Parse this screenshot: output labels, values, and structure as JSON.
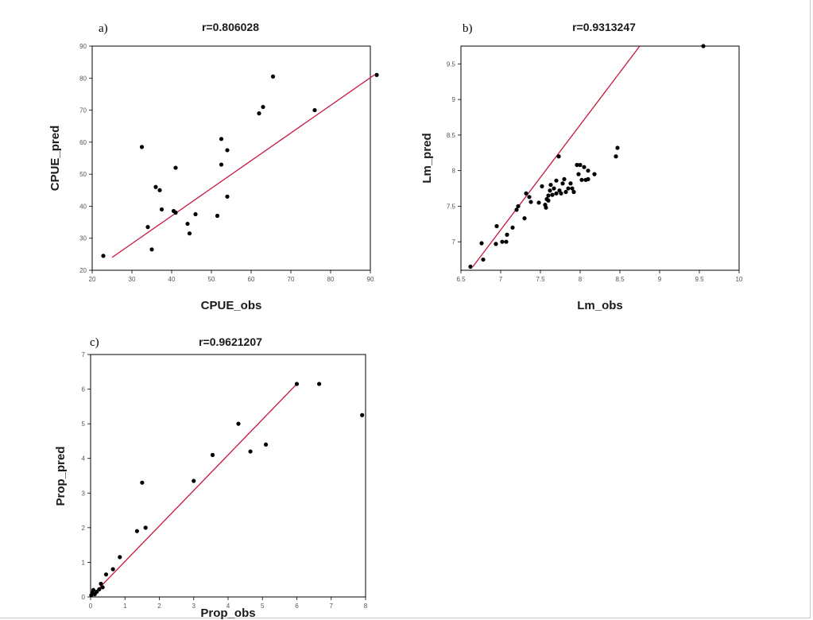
{
  "figure": {
    "panels": [
      {
        "label": "a)"
      },
      {
        "label": "b)"
      },
      {
        "label": "c)"
      }
    ]
  },
  "chart_data": [
    {
      "type": "scatter",
      "title": "r=0.806028",
      "xlabel": "CPUE_obs",
      "ylabel": "CPUE_pred",
      "xlim": [
        20,
        90
      ],
      "ylim": [
        20,
        90
      ],
      "xticks": [
        20,
        30,
        40,
        50,
        60,
        70,
        80,
        90
      ],
      "yticks": [
        20,
        30,
        40,
        50,
        60,
        70,
        80,
        90
      ],
      "tick_labels_x": [
        "20",
        "30",
        "40",
        "50",
        "60",
        "70",
        "80",
        "90"
      ],
      "tick_labels_y": [
        "20",
        "30",
        "40",
        "50",
        "60",
        "70",
        "80",
        "90"
      ],
      "grid": false,
      "fit_color": "#c8143c",
      "points": [
        [
          22.8,
          24.5
        ],
        [
          34.0,
          33.5
        ],
        [
          35.0,
          26.5
        ],
        [
          36.0,
          46.0
        ],
        [
          37.0,
          45.0
        ],
        [
          37.5,
          39.0
        ],
        [
          32.5,
          58.5
        ],
        [
          40.5,
          38.5
        ],
        [
          41.0,
          38.0
        ],
        [
          41.0,
          52.0
        ],
        [
          44.0,
          34.5
        ],
        [
          44.5,
          31.5
        ],
        [
          46.0,
          37.5
        ],
        [
          51.5,
          37.0
        ],
        [
          52.5,
          61.0
        ],
        [
          52.5,
          53.0
        ],
        [
          54.0,
          57.5
        ],
        [
          54.0,
          43.0
        ],
        [
          62.0,
          69.0
        ],
        [
          63.0,
          71.0
        ],
        [
          65.5,
          80.5
        ],
        [
          76.0,
          70.0
        ],
        [
          93.0,
          81.0
        ]
      ],
      "fit_line": [
        [
          25.0,
          24.0
        ],
        [
          91.0,
          81.0
        ]
      ]
    },
    {
      "type": "scatter",
      "title": "r=0.9313247",
      "xlabel": "Lm_obs",
      "ylabel": "Lm_pred",
      "xlim": [
        6.5,
        10
      ],
      "ylim": [
        6.6,
        9.75
      ],
      "xticks": [
        6.5,
        7,
        7.5,
        8,
        8.5,
        9,
        9.5,
        10
      ],
      "yticks": [
        7,
        7.5,
        8,
        8.5,
        9,
        9.5
      ],
      "tick_labels_x": [
        "6.5",
        "7",
        "7.5",
        "8",
        "8.5",
        "9",
        "9.5",
        "10"
      ],
      "tick_labels_y": [
        "7",
        "7.5",
        "8",
        "8.5",
        "9",
        "9.5"
      ],
      "grid": false,
      "fit_color": "#c8143c",
      "points": [
        [
          6.62,
          6.65
        ],
        [
          6.78,
          6.75
        ],
        [
          6.76,
          6.98
        ],
        [
          6.94,
          6.97
        ],
        [
          6.95,
          7.22
        ],
        [
          7.02,
          7.0
        ],
        [
          7.07,
          7.0
        ],
        [
          7.08,
          7.1
        ],
        [
          7.15,
          7.2
        ],
        [
          7.2,
          7.45
        ],
        [
          7.22,
          7.5
        ],
        [
          7.3,
          7.33
        ],
        [
          7.32,
          7.68
        ],
        [
          7.36,
          7.63
        ],
        [
          7.38,
          7.56
        ],
        [
          7.48,
          7.55
        ],
        [
          7.52,
          7.78
        ],
        [
          7.56,
          7.52
        ],
        [
          7.57,
          7.48
        ],
        [
          7.58,
          7.6
        ],
        [
          7.6,
          7.58
        ],
        [
          7.6,
          7.65
        ],
        [
          7.62,
          7.72
        ],
        [
          7.63,
          7.8
        ],
        [
          7.65,
          7.66
        ],
        [
          7.67,
          7.75
        ],
        [
          7.7,
          7.86
        ],
        [
          7.7,
          7.68
        ],
        [
          7.73,
          8.2
        ],
        [
          7.74,
          7.72
        ],
        [
          7.76,
          7.68
        ],
        [
          7.78,
          7.82
        ],
        [
          7.8,
          7.88
        ],
        [
          7.82,
          7.7
        ],
        [
          7.85,
          7.75
        ],
        [
          7.88,
          7.82
        ],
        [
          7.9,
          7.75
        ],
        [
          7.92,
          7.7
        ],
        [
          7.96,
          8.08
        ],
        [
          7.98,
          7.95
        ],
        [
          8.0,
          8.08
        ],
        [
          8.02,
          7.87
        ],
        [
          8.05,
          8.05
        ],
        [
          8.07,
          7.87
        ],
        [
          8.1,
          7.88
        ],
        [
          8.1,
          8.0
        ],
        [
          8.18,
          7.95
        ],
        [
          8.45,
          8.2
        ],
        [
          8.47,
          8.32
        ],
        [
          9.55,
          9.75
        ]
      ],
      "fit_line": [
        [
          6.65,
          6.65
        ],
        [
          8.75,
          9.75
        ]
      ]
    },
    {
      "type": "scatter",
      "title": "r=0.9621207",
      "xlabel": "Prop_obs",
      "ylabel": "Prop_pred",
      "xlim": [
        0,
        8
      ],
      "ylim": [
        0,
        7
      ],
      "xticks": [
        0,
        1,
        2,
        3,
        4,
        5,
        6,
        7,
        8
      ],
      "yticks": [
        0,
        1,
        2,
        3,
        4,
        5,
        6,
        7
      ],
      "tick_labels_x": [
        "0",
        "1",
        "2",
        "3",
        "4",
        "5",
        "6",
        "7",
        "8"
      ],
      "tick_labels_y": [
        "0",
        "1",
        "2",
        "3",
        "4",
        "5",
        "6",
        "7"
      ],
      "grid": false,
      "fit_color": "#c8143c",
      "points": [
        [
          0.02,
          0.05
        ],
        [
          0.05,
          0.12
        ],
        [
          0.08,
          0.2
        ],
        [
          0.12,
          0.08
        ],
        [
          0.18,
          0.15
        ],
        [
          0.25,
          0.22
        ],
        [
          0.3,
          0.38
        ],
        [
          0.35,
          0.28
        ],
        [
          0.45,
          0.65
        ],
        [
          0.65,
          0.8
        ],
        [
          0.85,
          1.15
        ],
        [
          1.35,
          1.9
        ],
        [
          1.5,
          3.3
        ],
        [
          1.6,
          2.0
        ],
        [
          3.0,
          3.35
        ],
        [
          3.55,
          4.1
        ],
        [
          4.3,
          5.0
        ],
        [
          4.65,
          4.2
        ],
        [
          5.1,
          4.4
        ],
        [
          6.0,
          6.15
        ],
        [
          6.65,
          6.15
        ],
        [
          7.9,
          5.25
        ]
      ],
      "fit_line": [
        [
          0.0,
          0.0
        ],
        [
          6.0,
          6.15
        ]
      ]
    }
  ]
}
